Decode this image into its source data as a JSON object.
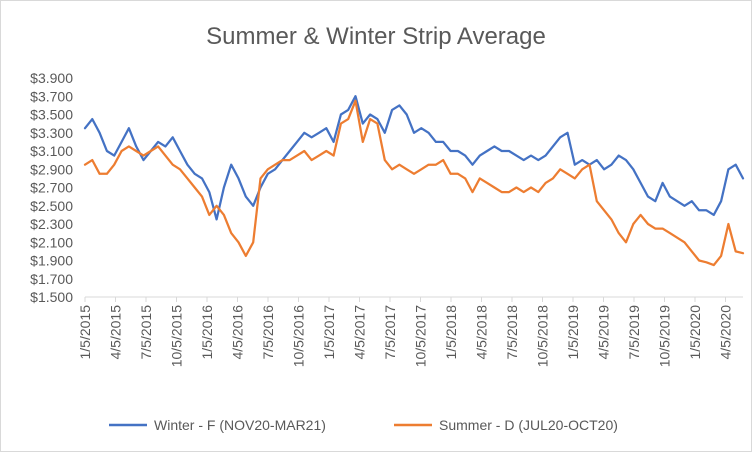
{
  "chart_data": {
    "type": "line",
    "title": "Summer & Winter Strip Average",
    "xlabel": "",
    "ylabel": "",
    "ylim": [
      1.5,
      3.9
    ],
    "y_ticks": [
      "$1.500",
      "$1.700",
      "$1.900",
      "$2.100",
      "$2.300",
      "$2.500",
      "$2.700",
      "$2.900",
      "$3.100",
      "$3.300",
      "$3.500",
      "$3.700",
      "$3.900"
    ],
    "x_ticks": [
      "1/5/2015",
      "4/5/2015",
      "7/5/2015",
      "10/5/2015",
      "1/5/2016",
      "4/5/2016",
      "7/5/2016",
      "10/5/2016",
      "1/5/2017",
      "4/5/2017",
      "7/5/2017",
      "10/5/2017",
      "1/5/2018",
      "4/5/2018",
      "7/5/2018",
      "10/5/2018",
      "1/5/2019",
      "4/5/2019",
      "7/5/2019",
      "10/5/2019",
      "1/5/2020",
      "4/5/2020"
    ],
    "legend_position": "bottom",
    "grid": false,
    "series": [
      {
        "name": "Winter - F (NOV20-MAR21)",
        "color": "#4472c4",
        "values": [
          3.35,
          3.45,
          3.3,
          3.1,
          3.05,
          3.2,
          3.35,
          3.15,
          3.0,
          3.1,
          3.2,
          3.15,
          3.25,
          3.1,
          2.95,
          2.85,
          2.8,
          2.65,
          2.35,
          2.7,
          2.95,
          2.8,
          2.6,
          2.5,
          2.7,
          2.85,
          2.9,
          3.0,
          3.1,
          3.2,
          3.3,
          3.25,
          3.3,
          3.35,
          3.2,
          3.5,
          3.55,
          3.7,
          3.4,
          3.5,
          3.45,
          3.3,
          3.55,
          3.6,
          3.5,
          3.3,
          3.35,
          3.3,
          3.2,
          3.2,
          3.1,
          3.1,
          3.05,
          2.95,
          3.05,
          3.1,
          3.15,
          3.1,
          3.1,
          3.05,
          3.0,
          3.05,
          3.0,
          3.05,
          3.15,
          3.25,
          3.3,
          2.95,
          3.0,
          2.95,
          3.0,
          2.9,
          2.95,
          3.05,
          3.0,
          2.9,
          2.75,
          2.6,
          2.55,
          2.75,
          2.6,
          2.55,
          2.5,
          2.55,
          2.45,
          2.45,
          2.4,
          2.55,
          2.9,
          2.95,
          2.8
        ]
      },
      {
        "name": "Summer - D (JUL20-OCT20)",
        "color": "#ed7d31",
        "values": [
          2.95,
          3.0,
          2.85,
          2.85,
          2.95,
          3.1,
          3.15,
          3.1,
          3.05,
          3.1,
          3.15,
          3.05,
          2.95,
          2.9,
          2.8,
          2.7,
          2.6,
          2.4,
          2.5,
          2.4,
          2.2,
          2.1,
          1.95,
          2.1,
          2.8,
          2.9,
          2.95,
          3.0,
          3.0,
          3.05,
          3.1,
          3.0,
          3.05,
          3.1,
          3.05,
          3.4,
          3.45,
          3.65,
          3.2,
          3.45,
          3.4,
          3.0,
          2.9,
          2.95,
          2.9,
          2.85,
          2.9,
          2.95,
          2.95,
          3.0,
          2.85,
          2.85,
          2.8,
          2.65,
          2.8,
          2.75,
          2.7,
          2.65,
          2.65,
          2.7,
          2.65,
          2.7,
          2.65,
          2.75,
          2.8,
          2.9,
          2.85,
          2.8,
          2.9,
          2.95,
          2.55,
          2.45,
          2.35,
          2.2,
          2.1,
          2.3,
          2.4,
          2.3,
          2.25,
          2.25,
          2.2,
          2.15,
          2.1,
          2.0,
          1.9,
          1.88,
          1.85,
          1.95,
          2.3,
          2.0,
          1.98
        ]
      }
    ]
  }
}
